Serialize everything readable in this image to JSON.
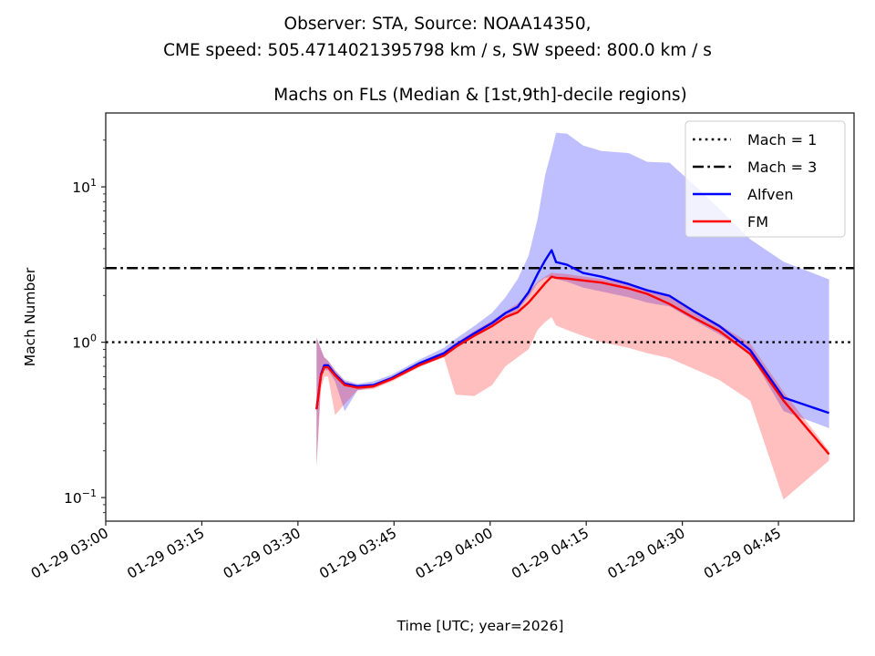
{
  "figure": {
    "suptitle_line1": "Observer: STA, Source: NOAA14350,",
    "suptitle_line2": "CME speed: 505.4714021395798 km / s, SW speed: 800.0 km / s"
  },
  "chart_data": {
    "type": "line",
    "title": "Machs on FLs (Median & [1st,9th]-decile regions)",
    "xlabel": "Time [UTC; year=2026]",
    "ylabel": "Mach Number",
    "yscale": "log",
    "ylim": [
      0.0705,
      29.9
    ],
    "x_units": "minutes after 2026-01-29 03:00 UTC",
    "xlim": [
      0,
      116.8
    ],
    "x_ticks": [
      {
        "value": 0,
        "label": "01-29 03:00"
      },
      {
        "value": 15,
        "label": "01-29 03:15"
      },
      {
        "value": 30,
        "label": "01-29 03:30"
      },
      {
        "value": 45,
        "label": "01-29 03:45"
      },
      {
        "value": 60,
        "label": "01-29 04:00"
      },
      {
        "value": 75,
        "label": "01-29 04:15"
      },
      {
        "value": 90,
        "label": "01-29 04:30"
      },
      {
        "value": 105,
        "label": "01-29 04:45"
      }
    ],
    "y_ticks": [
      {
        "value": 0.1,
        "base": "10",
        "exp": "−1"
      },
      {
        "value": 1,
        "base": "10",
        "exp": "0"
      },
      {
        "value": 10,
        "base": "10",
        "exp": "1"
      }
    ],
    "grid": false,
    "legend": {
      "placement": "top-right",
      "entries": [
        {
          "label": "Mach = 1",
          "style": "dotted",
          "color": "#000000"
        },
        {
          "label": "Mach = 3",
          "style": "dashdot",
          "color": "#000000"
        },
        {
          "label": "Alfven",
          "style": "solid",
          "color": "#0000ff"
        },
        {
          "label": "FM",
          "style": "solid",
          "color": "#ff0000"
        }
      ]
    },
    "reference_lines": [
      {
        "name": "Mach = 1",
        "y": 1,
        "style": "dotted",
        "color": "#000000"
      },
      {
        "name": "Mach = 3",
        "y": 3,
        "style": "dashdot",
        "color": "#000000"
      }
    ],
    "series": [
      {
        "name": "Alfven",
        "color": "#0000ff",
        "band_color": "#0000ff",
        "x": [
          32.9,
          33.6,
          34.1,
          34.7,
          35.8,
          37.3,
          39.3,
          41.8,
          44.7,
          48.9,
          52.8,
          54.6,
          57.5,
          60.3,
          62.4,
          64.3,
          66.0,
          67.4,
          68.6,
          69.6,
          70.3,
          72.0,
          74.5,
          77.4,
          81.6,
          84.5,
          88.0,
          91.6,
          95.8,
          100.6,
          105.8,
          112.9
        ],
        "median": [
          0.37,
          0.62,
          0.71,
          0.71,
          0.62,
          0.54,
          0.52,
          0.53,
          0.59,
          0.73,
          0.85,
          0.96,
          1.14,
          1.33,
          1.54,
          1.69,
          2.1,
          2.75,
          3.37,
          3.91,
          3.28,
          3.15,
          2.79,
          2.64,
          2.37,
          2.16,
          1.99,
          1.6,
          1.27,
          0.89,
          0.44,
          0.35
        ],
        "decile_1": [
          0.16,
          0.6,
          0.66,
          0.66,
          0.56,
          0.36,
          0.49,
          0.51,
          0.57,
          0.7,
          0.83,
          0.92,
          1.09,
          1.27,
          1.46,
          1.6,
          1.96,
          2.4,
          2.6,
          2.62,
          2.55,
          2.45,
          2.25,
          2.12,
          1.95,
          1.8,
          1.7,
          1.4,
          1.12,
          0.84,
          0.36,
          0.28
        ],
        "decile_9": [
          1.07,
          0.9,
          0.8,
          0.76,
          0.66,
          0.57,
          0.54,
          0.56,
          0.62,
          0.77,
          0.92,
          1.05,
          1.27,
          1.55,
          1.95,
          2.55,
          3.6,
          6.2,
          12.0,
          17.0,
          22.3,
          22.0,
          18.5,
          17.0,
          16.5,
          14.5,
          14.3,
          10.5,
          7.2,
          4.6,
          3.3,
          2.54
        ]
      },
      {
        "name": "FM",
        "color": "#ff0000",
        "band_color": "#ff0000",
        "x": [
          32.9,
          33.6,
          34.1,
          34.7,
          35.8,
          37.3,
          39.3,
          41.8,
          44.7,
          48.9,
          52.8,
          54.6,
          57.5,
          60.3,
          62.4,
          64.3,
          66.0,
          67.4,
          68.6,
          69.6,
          70.3,
          72.0,
          74.5,
          77.4,
          81.6,
          84.5,
          88.0,
          91.6,
          95.8,
          100.6,
          105.8,
          112.9
        ],
        "median": [
          0.37,
          0.61,
          0.69,
          0.69,
          0.61,
          0.53,
          0.51,
          0.52,
          0.58,
          0.71,
          0.82,
          0.93,
          1.1,
          1.27,
          1.45,
          1.56,
          1.8,
          2.1,
          2.4,
          2.64,
          2.6,
          2.57,
          2.5,
          2.42,
          2.22,
          2.05,
          1.76,
          1.45,
          1.18,
          0.84,
          0.42,
          0.19
        ],
        "decile_1": [
          0.157,
          0.5,
          0.6,
          0.6,
          0.34,
          0.4,
          0.49,
          0.5,
          0.56,
          0.69,
          0.8,
          0.46,
          0.45,
          0.53,
          0.7,
          0.8,
          0.9,
          1.2,
          1.35,
          1.45,
          1.28,
          1.2,
          1.1,
          1.0,
          0.92,
          0.85,
          0.79,
          0.68,
          0.57,
          0.42,
          0.097,
          0.173
        ],
        "decile_9": [
          1.07,
          0.9,
          0.8,
          0.76,
          0.66,
          0.56,
          0.53,
          0.54,
          0.6,
          0.74,
          0.87,
          0.99,
          1.18,
          1.38,
          1.58,
          1.78,
          2.1,
          2.45,
          2.65,
          2.8,
          2.78,
          2.75,
          2.65,
          2.55,
          2.38,
          2.2,
          1.95,
          1.62,
          1.3,
          0.98,
          0.48,
          0.2
        ]
      }
    ]
  }
}
